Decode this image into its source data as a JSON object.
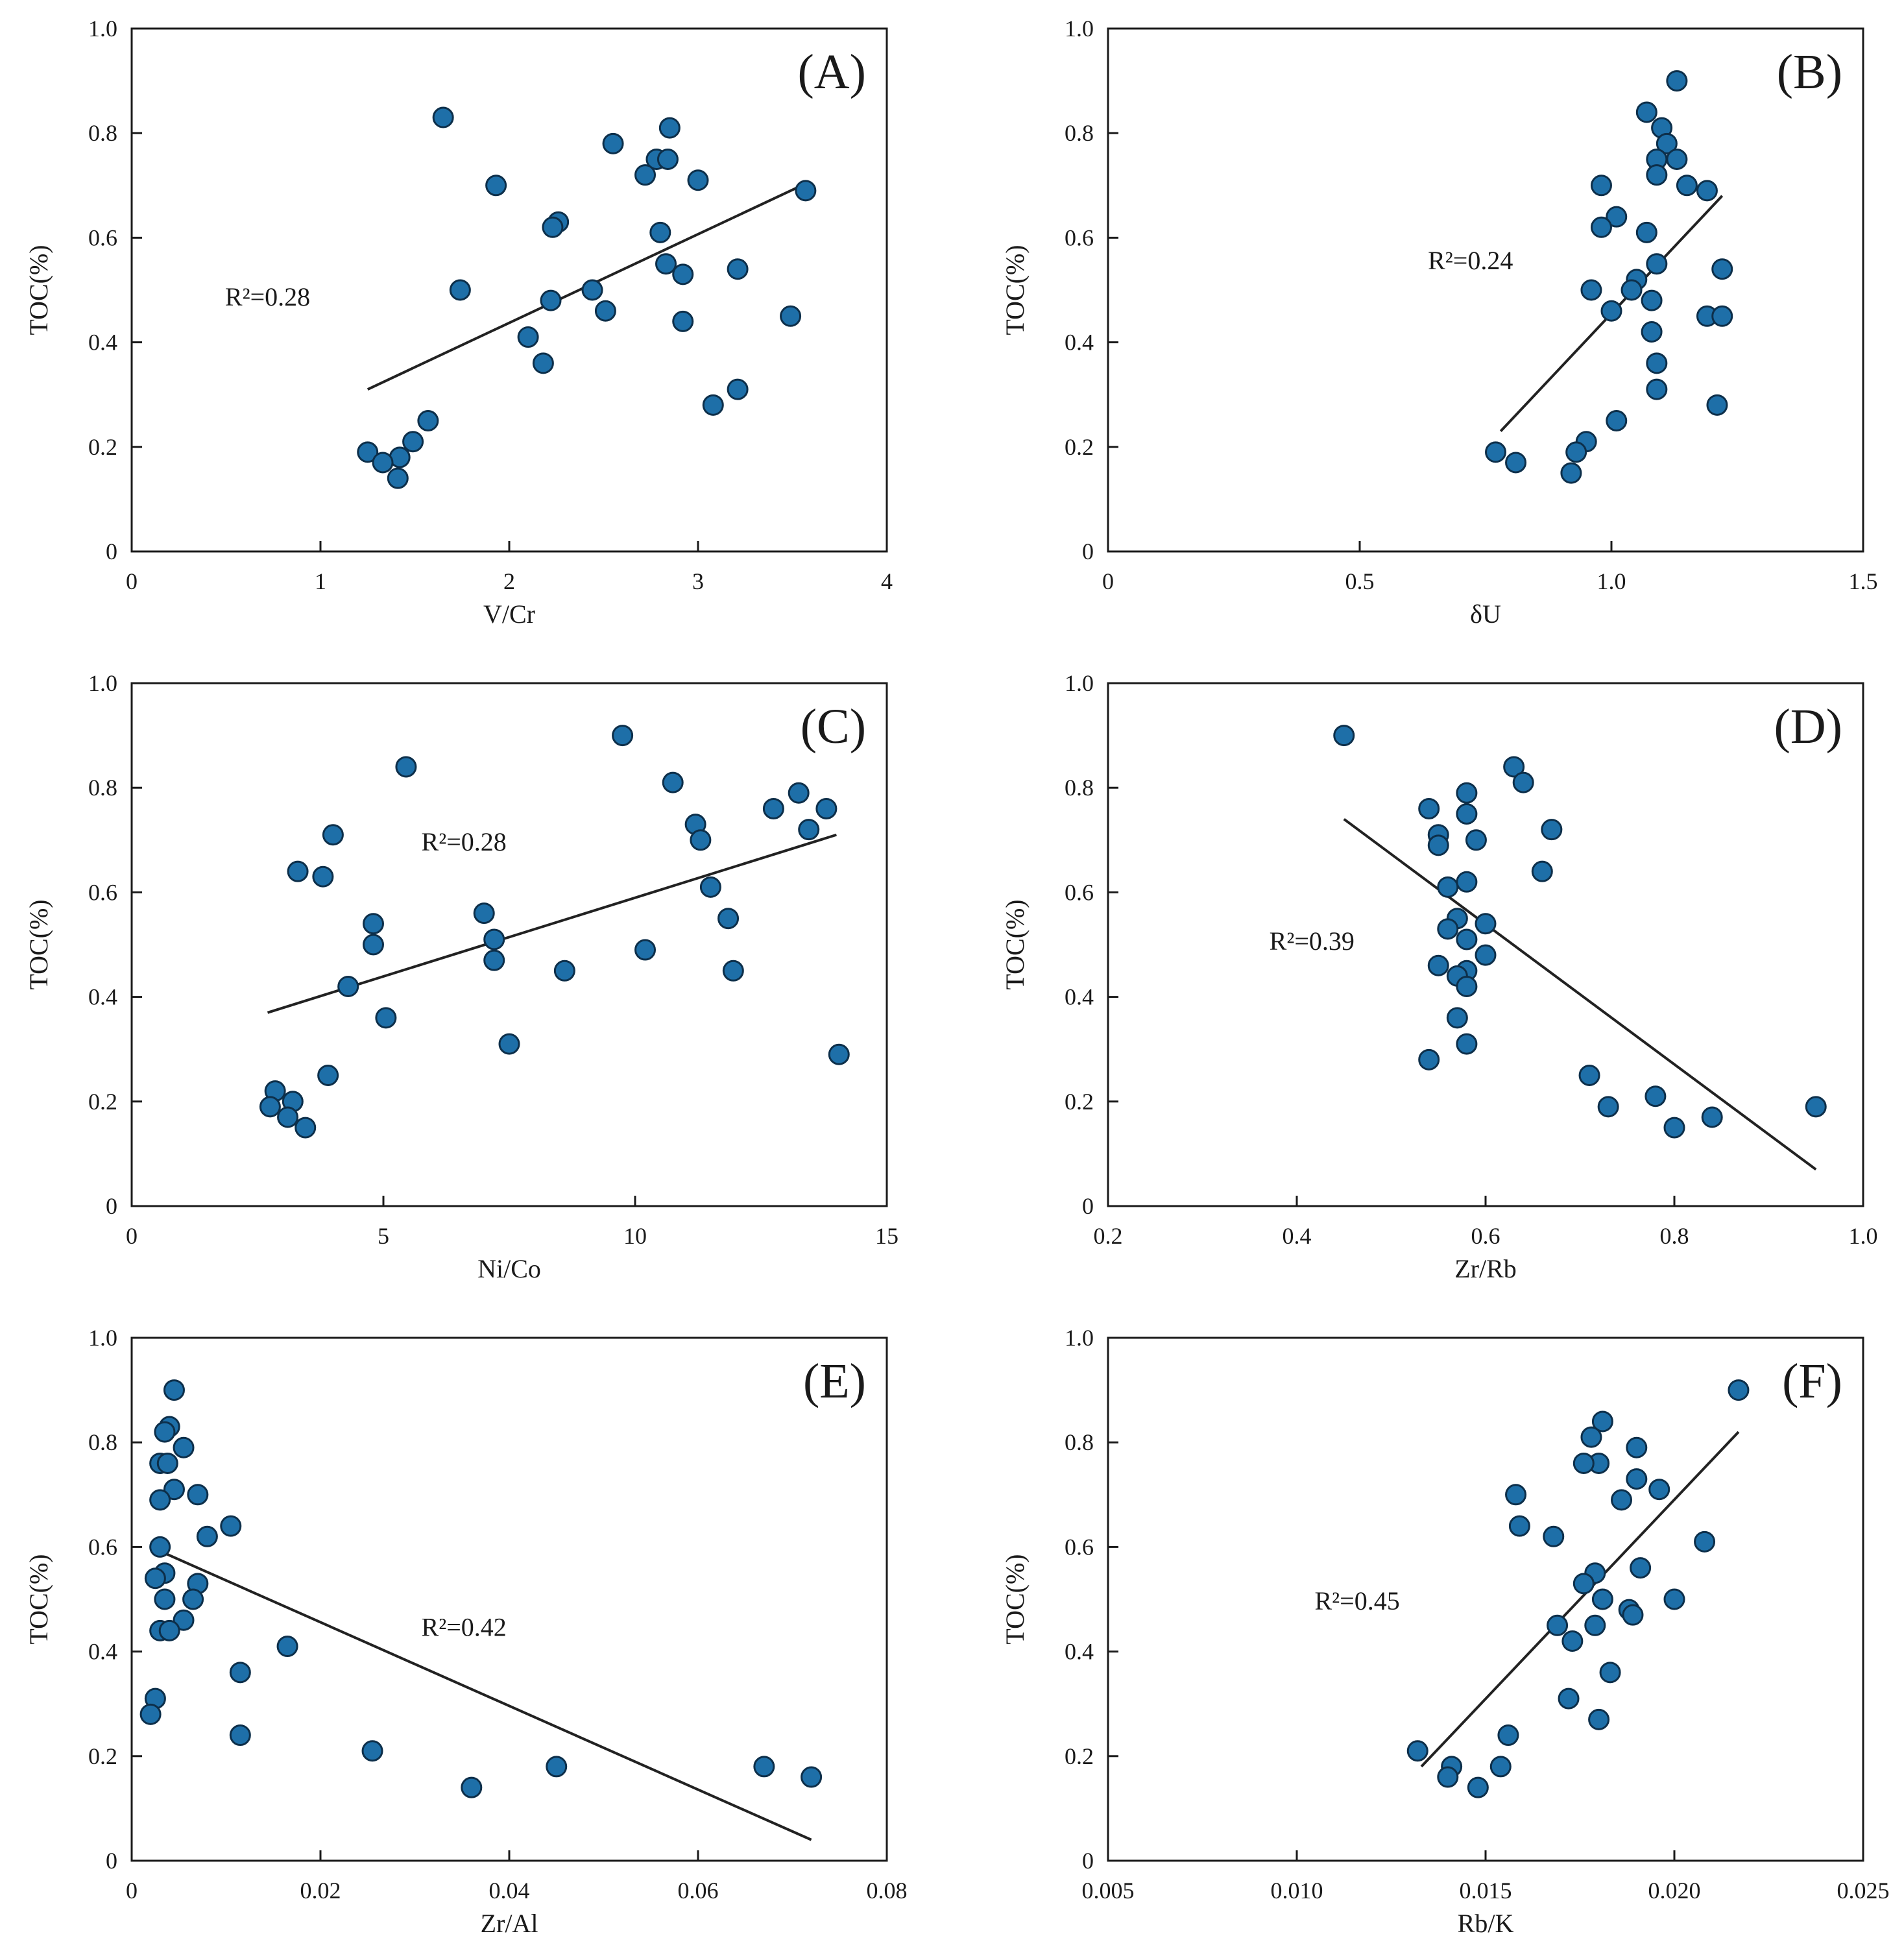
{
  "colors": {
    "point_fill": "#1e6fa8",
    "point_stroke": "#0d2f4a",
    "axis": "#1a1a1a",
    "fit_line": "#222222"
  },
  "chart_data": [
    {
      "type": "scatter",
      "panel": "(A)",
      "xlabel": "V/Cr",
      "ylabel": "TOC(%)",
      "xlim": [
        0,
        4
      ],
      "ylim": [
        0,
        1.0
      ],
      "xticks": [
        0,
        1,
        2,
        3,
        4
      ],
      "xtick_labels": [
        "0",
        "1",
        "2",
        "3",
        "4"
      ],
      "yticks": [
        0,
        0.2,
        0.4,
        0.6,
        0.8,
        1.0
      ],
      "ytick_labels": [
        "0",
        "0.2",
        "0.4",
        "0.6",
        "0.8",
        "1.0"
      ],
      "r2_text": "R²=0.28",
      "fit_line": {
        "x": [
          1.25,
          3.55
        ],
        "y": [
          0.31,
          0.7
        ]
      },
      "points": {
        "x": [
          1.65,
          2.55,
          2.85,
          2.78,
          2.84,
          2.72,
          3.0,
          3.57,
          1.93,
          2.26,
          2.23,
          2.8,
          1.74,
          2.22,
          2.44,
          2.83,
          2.92,
          3.21,
          2.51,
          2.92,
          3.49,
          2.1,
          2.18,
          3.21,
          3.08,
          1.57,
          1.49,
          1.42,
          1.25,
          1.33,
          1.41
        ],
        "y": [
          0.83,
          0.78,
          0.81,
          0.75,
          0.75,
          0.72,
          0.71,
          0.69,
          0.7,
          0.63,
          0.62,
          0.61,
          0.5,
          0.48,
          0.5,
          0.55,
          0.53,
          0.54,
          0.46,
          0.44,
          0.45,
          0.41,
          0.36,
          0.31,
          0.28,
          0.25,
          0.21,
          0.18,
          0.19,
          0.17,
          0.14
        ]
      }
    },
    {
      "type": "scatter",
      "panel": "(B)",
      "xlabel": "δU",
      "ylabel": "TOC(%)",
      "xlim": [
        0,
        1.5
      ],
      "ylim": [
        0,
        1.0
      ],
      "xticks": [
        0,
        0.5,
        1.0,
        1.5
      ],
      "xtick_labels": [
        "0",
        "0.5",
        "1.0",
        "1.5"
      ],
      "yticks": [
        0,
        0.2,
        0.4,
        0.6,
        0.8,
        1.0
      ],
      "ytick_labels": [
        "0",
        "0.2",
        "0.4",
        "0.6",
        "0.8",
        "1.0"
      ],
      "r2_text": "R²=0.24",
      "fit_line": {
        "x": [
          0.78,
          1.22
        ],
        "y": [
          0.23,
          0.68
        ]
      },
      "points": {
        "x": [
          1.13,
          1.07,
          1.1,
          1.11,
          1.09,
          1.13,
          1.09,
          1.15,
          1.19,
          0.98,
          1.01,
          0.98,
          1.07,
          1.09,
          1.05,
          0.96,
          1.04,
          1.08,
          1.0,
          1.22,
          1.19,
          1.22,
          1.08,
          1.09,
          1.09,
          1.21,
          1.01,
          0.77,
          0.95,
          0.93,
          0.81,
          0.92
        ],
        "y": [
          0.9,
          0.84,
          0.81,
          0.78,
          0.75,
          0.75,
          0.72,
          0.7,
          0.69,
          0.7,
          0.64,
          0.62,
          0.61,
          0.55,
          0.52,
          0.5,
          0.5,
          0.48,
          0.46,
          0.54,
          0.45,
          0.45,
          0.42,
          0.36,
          0.31,
          0.28,
          0.25,
          0.19,
          0.21,
          0.19,
          0.17,
          0.15
        ]
      }
    },
    {
      "type": "scatter",
      "panel": "(C)",
      "xlabel": "Ni/Co",
      "ylabel": "TOC(%)",
      "xlim": [
        0,
        15
      ],
      "ylim": [
        0,
        1.0
      ],
      "xticks": [
        0,
        5,
        10,
        15
      ],
      "xtick_labels": [
        "0",
        "5",
        "10",
        "15"
      ],
      "yticks": [
        0,
        0.2,
        0.4,
        0.6,
        0.8,
        1.0
      ],
      "ytick_labels": [
        "0",
        "0.2",
        "0.4",
        "0.6",
        "0.8",
        "1.0"
      ],
      "r2_text": "R²=0.28",
      "fit_line": {
        "x": [
          2.7,
          14.0
        ],
        "y": [
          0.37,
          0.71
        ]
      },
      "points": {
        "x": [
          9.75,
          5.45,
          10.75,
          13.25,
          13.8,
          12.75,
          11.2,
          13.45,
          11.3,
          4.0,
          3.3,
          3.8,
          11.5,
          7.0,
          4.8,
          11.85,
          7.2,
          4.8,
          10.2,
          7.2,
          8.6,
          11.95,
          4.3,
          5.05,
          7.5,
          14.05,
          3.9,
          2.85,
          3.2,
          2.75,
          3.1,
          3.45
        ],
        "y": [
          0.9,
          0.84,
          0.81,
          0.79,
          0.76,
          0.76,
          0.73,
          0.72,
          0.7,
          0.71,
          0.64,
          0.63,
          0.61,
          0.56,
          0.54,
          0.55,
          0.51,
          0.5,
          0.49,
          0.47,
          0.45,
          0.45,
          0.42,
          0.36,
          0.31,
          0.29,
          0.25,
          0.22,
          0.2,
          0.19,
          0.17,
          0.15
        ]
      }
    },
    {
      "type": "scatter",
      "panel": "(D)",
      "xlabel": "Zr/Rb",
      "ylabel": "TOC(%)",
      "xlim": [
        0.2,
        1.0
      ],
      "ylim": [
        0,
        1.0
      ],
      "xticks": [
        0.2,
        0.4,
        0.6,
        0.8,
        1.0
      ],
      "xtick_labels": [
        "0.2",
        "0.4",
        "0.6",
        "0.8",
        "1.0"
      ],
      "yticks": [
        0,
        0.2,
        0.4,
        0.6,
        0.8,
        1.0
      ],
      "ytick_labels": [
        "0",
        "0.2",
        "0.4",
        "0.6",
        "0.8",
        "1.0"
      ],
      "r2_text": "R²=0.39",
      "fit_line": {
        "x": [
          0.45,
          0.95
        ],
        "y": [
          0.74,
          0.07
        ]
      },
      "points": {
        "x": [
          0.45,
          0.63,
          0.64,
          0.58,
          0.54,
          0.58,
          0.67,
          0.55,
          0.59,
          0.55,
          0.66,
          0.58,
          0.56,
          0.57,
          0.6,
          0.56,
          0.58,
          0.55,
          0.6,
          0.58,
          0.57,
          0.58,
          0.57,
          0.58,
          0.54,
          0.71,
          0.78,
          0.73,
          0.84,
          0.8,
          0.95
        ],
        "y": [
          0.9,
          0.84,
          0.81,
          0.79,
          0.76,
          0.75,
          0.72,
          0.71,
          0.7,
          0.69,
          0.64,
          0.62,
          0.61,
          0.55,
          0.54,
          0.53,
          0.51,
          0.46,
          0.48,
          0.45,
          0.44,
          0.42,
          0.36,
          0.31,
          0.28,
          0.25,
          0.21,
          0.19,
          0.17,
          0.15,
          0.19
        ]
      }
    },
    {
      "type": "scatter",
      "panel": "(E)",
      "xlabel": "Zr/Al",
      "ylabel": "TOC(%)",
      "xlim": [
        0,
        0.08
      ],
      "ylim": [
        0,
        1.0
      ],
      "xticks": [
        0,
        0.02,
        0.04,
        0.06,
        0.08
      ],
      "xtick_labels": [
        "0",
        "0.02",
        "0.04",
        "0.06",
        "0.08"
      ],
      "yticks": [
        0,
        0.2,
        0.4,
        0.6,
        0.8,
        1.0
      ],
      "ytick_labels": [
        "0",
        "0.2",
        "0.4",
        "0.6",
        "0.8",
        "1.0"
      ],
      "r2_text": "R²=0.42",
      "fit_line": {
        "x": [
          0.002,
          0.072
        ],
        "y": [
          0.6,
          0.04
        ]
      },
      "points": {
        "x": [
          0.0045,
          0.004,
          0.0035,
          0.0055,
          0.003,
          0.0038,
          0.0045,
          0.007,
          0.003,
          0.008,
          0.0105,
          0.003,
          0.0035,
          0.0025,
          0.007,
          0.0035,
          0.0065,
          0.0055,
          0.003,
          0.004,
          0.0165,
          0.0115,
          0.0025,
          0.002,
          0.0115,
          0.0255,
          0.036,
          0.045,
          0.067,
          0.072
        ],
        "y": [
          0.9,
          0.83,
          0.82,
          0.79,
          0.76,
          0.76,
          0.71,
          0.7,
          0.69,
          0.62,
          0.64,
          0.6,
          0.55,
          0.54,
          0.53,
          0.5,
          0.5,
          0.46,
          0.44,
          0.44,
          0.41,
          0.36,
          0.31,
          0.28,
          0.24,
          0.21,
          0.14,
          0.18,
          0.18,
          0.16
        ]
      }
    },
    {
      "type": "scatter",
      "panel": "(F)",
      "xlabel": "Rb/K",
      "ylabel": "TOC(%)",
      "xlim": [
        0.005,
        0.025
      ],
      "ylim": [
        0,
        1.0
      ],
      "xticks": [
        0.005,
        0.01,
        0.015,
        0.02,
        0.025
      ],
      "xtick_labels": [
        "0.005",
        "0.010",
        "0.015",
        "0.020",
        "0.025"
      ],
      "yticks": [
        0,
        0.2,
        0.4,
        0.6,
        0.8,
        1.0
      ],
      "ytick_labels": [
        "0",
        "0.2",
        "0.4",
        "0.6",
        "0.8",
        "1.0"
      ],
      "r2_text": "R²=0.45",
      "fit_line": {
        "x": [
          0.0133,
          0.0217
        ],
        "y": [
          0.18,
          0.82
        ]
      },
      "points": {
        "x": [
          0.0217,
          0.0181,
          0.0178,
          0.019,
          0.018,
          0.0176,
          0.019,
          0.0196,
          0.0158,
          0.0186,
          0.0159,
          0.0168,
          0.0208,
          0.0179,
          0.0191,
          0.0176,
          0.0181,
          0.02,
          0.0188,
          0.0189,
          0.0169,
          0.0179,
          0.0173,
          0.0183,
          0.0172,
          0.018,
          0.0156,
          0.0132,
          0.0141,
          0.0154,
          0.014,
          0.0148
        ],
        "y": [
          0.9,
          0.84,
          0.81,
          0.79,
          0.76,
          0.76,
          0.73,
          0.71,
          0.7,
          0.69,
          0.64,
          0.62,
          0.61,
          0.55,
          0.56,
          0.53,
          0.5,
          0.5,
          0.48,
          0.47,
          0.45,
          0.45,
          0.42,
          0.36,
          0.31,
          0.27,
          0.24,
          0.21,
          0.18,
          0.18,
          0.16,
          0.14
        ]
      }
    }
  ]
}
